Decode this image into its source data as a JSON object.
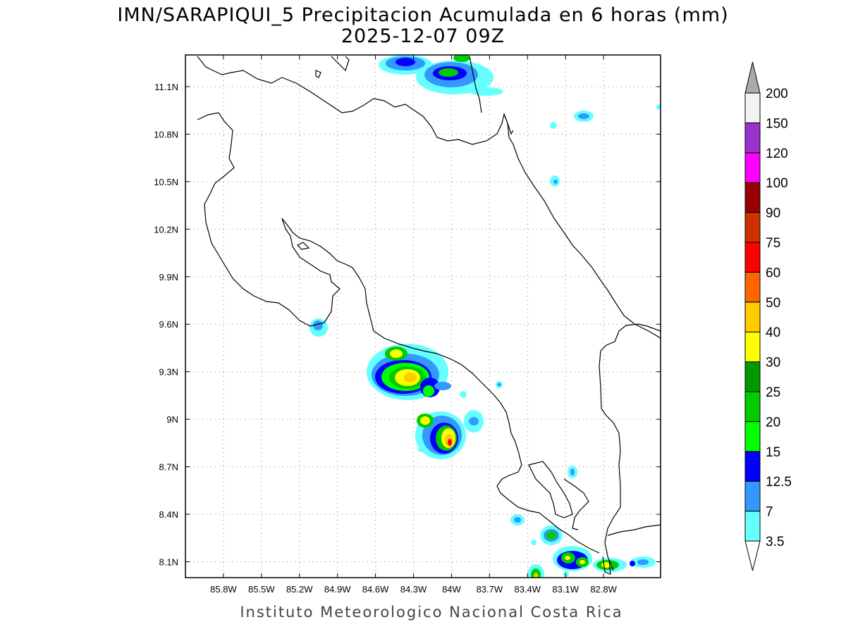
{
  "title": {
    "line1": "IMN/SARAPIQUI_5 Precipitacion Acumulada en 6 horas (mm)",
    "line2": "2025-12-07 09Z"
  },
  "credit": "Instituto Meteorologico Nacional Costa Rica",
  "map": {
    "lon_range": [
      -86.1,
      -82.35
    ],
    "lat_range": [
      8.0,
      11.3
    ],
    "lon_ticks": [
      {
        "value": -85.8,
        "label": "85.8W"
      },
      {
        "value": -85.5,
        "label": "85.5W"
      },
      {
        "value": -85.2,
        "label": "85.2W"
      },
      {
        "value": -84.9,
        "label": "84.9W"
      },
      {
        "value": -84.6,
        "label": "84.6W"
      },
      {
        "value": -84.3,
        "label": "84.3W"
      },
      {
        "value": -84.0,
        "label": "84W"
      },
      {
        "value": -83.7,
        "label": "83.7W"
      },
      {
        "value": -83.4,
        "label": "83.4W"
      },
      {
        "value": -83.1,
        "label": "83.1W"
      },
      {
        "value": -82.8,
        "label": "82.8W"
      }
    ],
    "lat_ticks": [
      {
        "value": 8.1,
        "label": "8.1N"
      },
      {
        "value": 8.4,
        "label": "8.4N"
      },
      {
        "value": 8.7,
        "label": "8.7N"
      },
      {
        "value": 9.0,
        "label": "9N"
      },
      {
        "value": 9.3,
        "label": "9.3N"
      },
      {
        "value": 9.6,
        "label": "9.6N"
      },
      {
        "value": 9.9,
        "label": "9.9N"
      },
      {
        "value": 10.2,
        "label": "10.2N"
      },
      {
        "value": 10.5,
        "label": "10.5N"
      },
      {
        "value": 10.8,
        "label": "10.8N"
      },
      {
        "value": 11.1,
        "label": "11.1N"
      }
    ],
    "grid": true,
    "coast_color": "#000000"
  },
  "colorbar": {
    "levels": [
      "3.5",
      "7",
      "12.5",
      "15",
      "20",
      "25",
      "30",
      "40",
      "50",
      "60",
      "75",
      "90",
      "100",
      "120",
      "150",
      "200"
    ],
    "colors": [
      "#66ffff",
      "#3399ff",
      "#0000ff",
      "#00ff00",
      "#00cc00",
      "#009900",
      "#ffff00",
      "#ffcc00",
      "#ff6600",
      "#ff0000",
      "#cc3300",
      "#990000",
      "#ff00ff",
      "#9933cc",
      "#f2f2f2"
    ],
    "top_arrow_color": "#aaaaaa",
    "bottom_arrow_color": "#ffffff"
  }
}
